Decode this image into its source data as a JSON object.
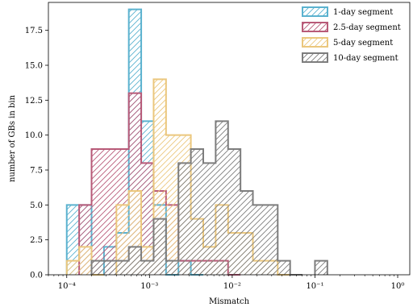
{
  "chart_data": {
    "type": "histogram",
    "x_scale": "log",
    "xlim": [
      6e-05,
      1.4
    ],
    "ylim": [
      0,
      19.5
    ],
    "xlabel": "Mismatch",
    "ylabel": "number of GBs in bin",
    "x_ticks": [
      {
        "value": 0.0001,
        "label": "10⁻⁴"
      },
      {
        "value": 0.001,
        "label": "10⁻³"
      },
      {
        "value": 0.01,
        "label": "10⁻²"
      },
      {
        "value": 0.1,
        "label": "10⁻¹"
      },
      {
        "value": 1,
        "label": "10⁰"
      }
    ],
    "y_ticks": [
      {
        "value": 0,
        "label": "0.0"
      },
      {
        "value": 2.5,
        "label": "2.5"
      },
      {
        "value": 5,
        "label": "5.0"
      },
      {
        "value": 7.5,
        "label": "7.5"
      },
      {
        "value": 10,
        "label": "10.0"
      },
      {
        "value": 12.5,
        "label": "12.5"
      },
      {
        "value": 15,
        "label": "15.0"
      },
      {
        "value": 17.5,
        "label": "17.5"
      }
    ],
    "bin_edges_log10": [
      -4.0,
      -3.85,
      -3.7,
      -3.55,
      -3.4,
      -3.25,
      -3.1,
      -2.95,
      -2.8,
      -2.65,
      -2.5,
      -2.35,
      -2.2,
      -2.05,
      -1.9,
      -1.75,
      -1.6,
      -1.45,
      -1.3,
      -1.15,
      -1.0,
      -0.85
    ],
    "legend_position": "top-right",
    "series": [
      {
        "name": "1-day segment",
        "color": "#5bb2cf",
        "counts": [
          5,
          5,
          0,
          2,
          3,
          19,
          11,
          5,
          0,
          1,
          0,
          0,
          0,
          0,
          0,
          0,
          0,
          0,
          0,
          0,
          0
        ]
      },
      {
        "name": "2.5-day segment",
        "color": "#b85a78",
        "counts": [
          0,
          5,
          9,
          9,
          9,
          13,
          8,
          6,
          5,
          1,
          1,
          1,
          1,
          0,
          0,
          0,
          0,
          0,
          0,
          0,
          0
        ]
      },
      {
        "name": "5-day segment",
        "color": "#ebc77d",
        "counts": [
          1,
          2,
          0,
          0,
          5,
          6,
          2,
          14,
          10,
          10,
          4,
          2,
          5,
          3,
          3,
          1,
          1,
          0,
          0,
          0,
          0
        ]
      },
      {
        "name": "10-day segment",
        "color": "#7d7d7d",
        "counts": [
          0,
          0,
          1,
          1,
          1,
          2,
          1,
          4,
          1,
          8,
          9,
          8,
          11,
          9,
          6,
          5,
          5,
          1,
          0,
          0,
          1
        ]
      }
    ]
  }
}
